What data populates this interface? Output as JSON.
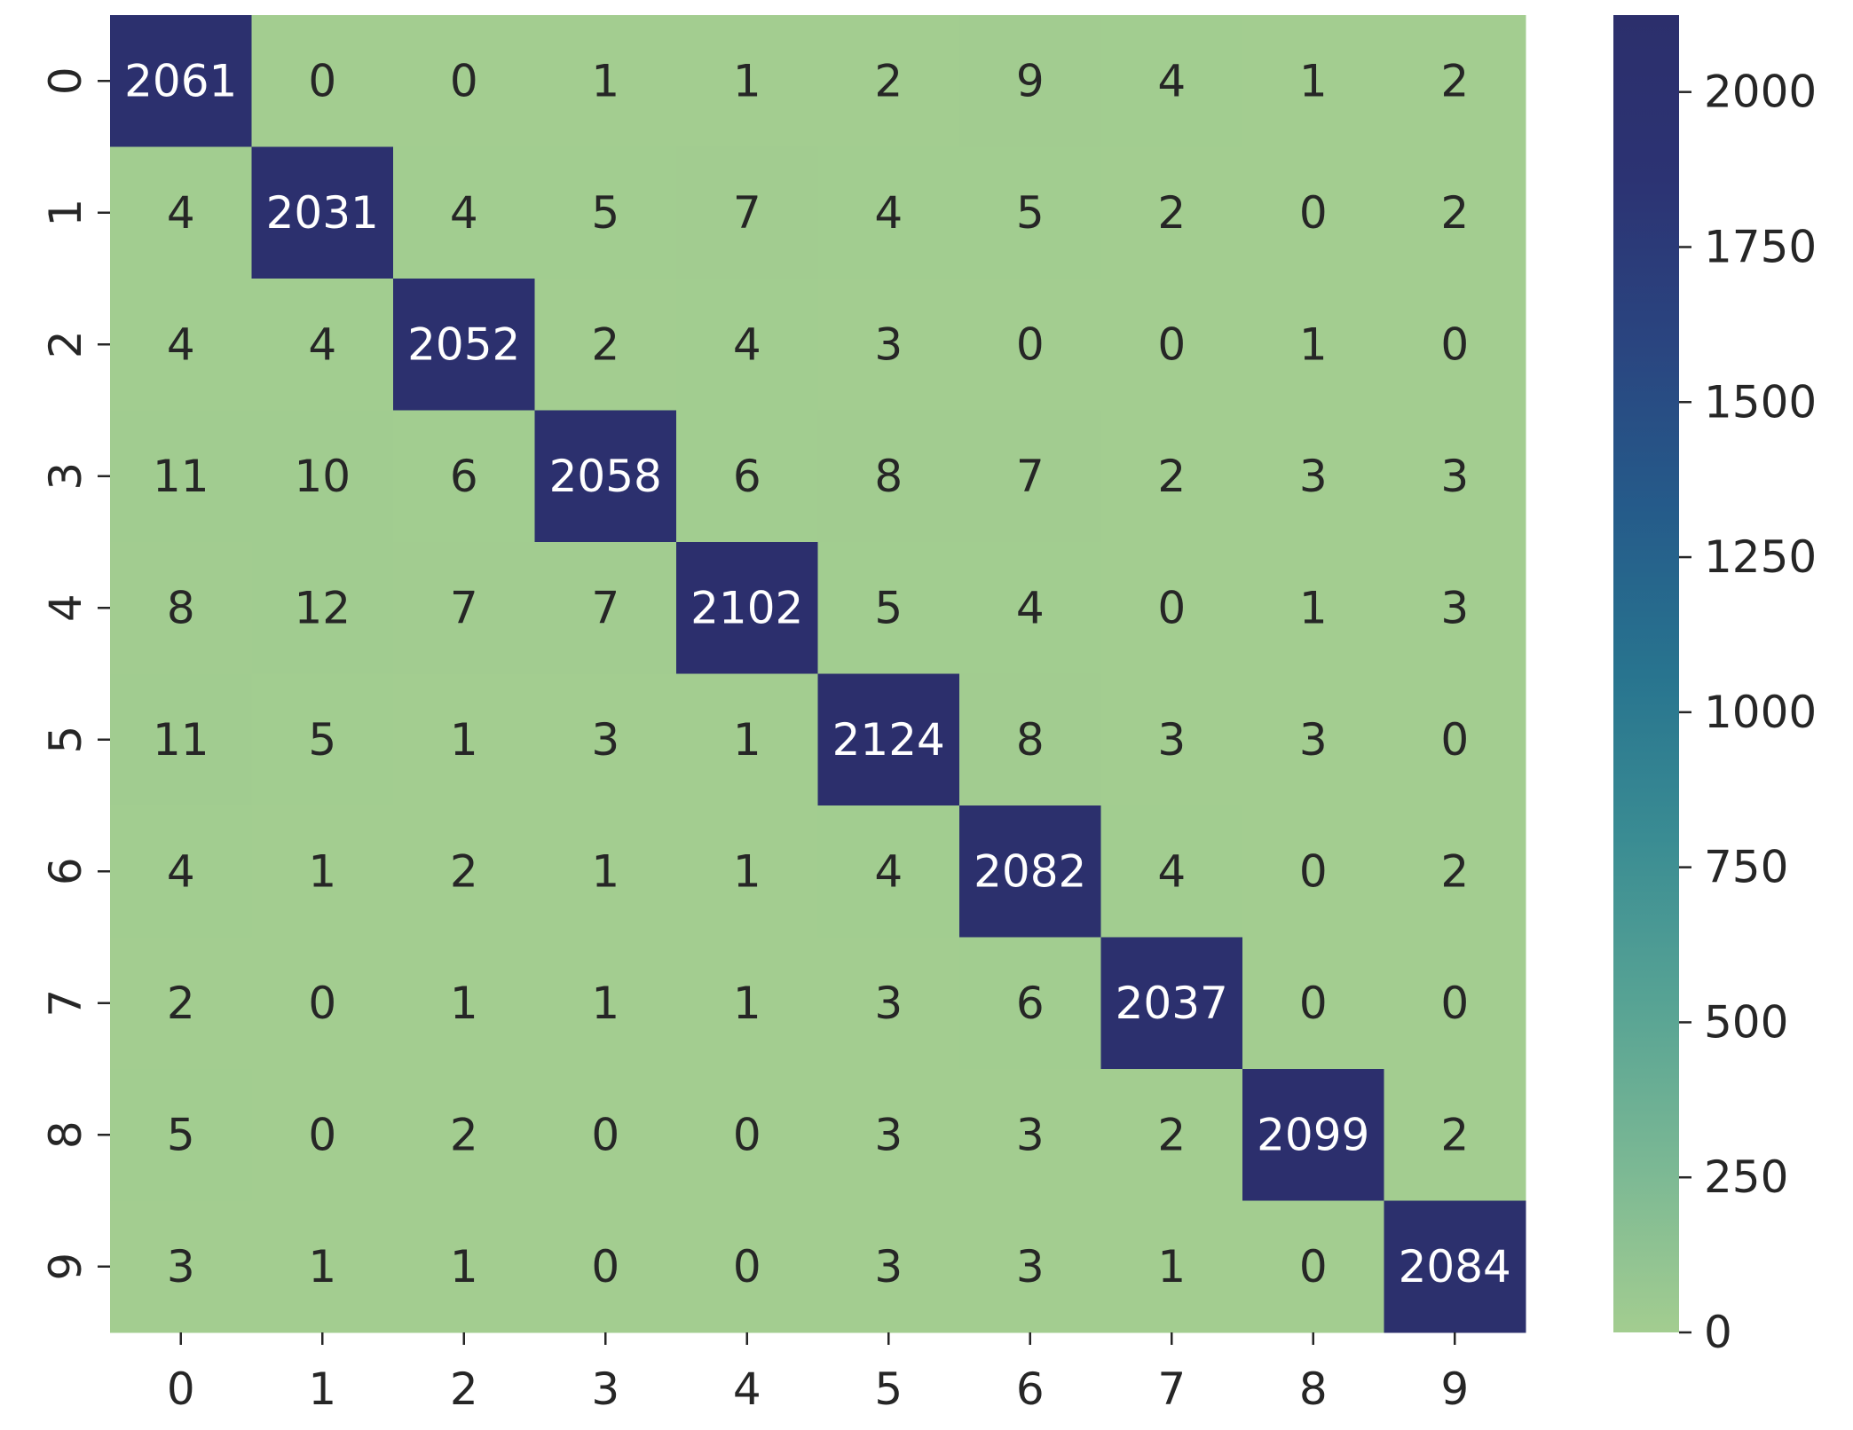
{
  "chart_data": {
    "type": "heatmap",
    "x_categories": [
      "0",
      "1",
      "2",
      "3",
      "4",
      "5",
      "6",
      "7",
      "8",
      "9"
    ],
    "y_categories": [
      "0",
      "1",
      "2",
      "3",
      "4",
      "5",
      "6",
      "7",
      "8",
      "9"
    ],
    "values": [
      [
        2061,
        0,
        0,
        1,
        1,
        2,
        9,
        4,
        1,
        2
      ],
      [
        4,
        2031,
        4,
        5,
        7,
        4,
        5,
        2,
        0,
        2
      ],
      [
        4,
        4,
        2052,
        2,
        4,
        3,
        0,
        0,
        1,
        0
      ],
      [
        11,
        10,
        6,
        2058,
        6,
        8,
        7,
        2,
        3,
        3
      ],
      [
        8,
        12,
        7,
        7,
        2102,
        5,
        4,
        0,
        1,
        3
      ],
      [
        11,
        5,
        1,
        3,
        1,
        2124,
        8,
        3,
        3,
        0
      ],
      [
        4,
        1,
        2,
        1,
        1,
        4,
        2082,
        4,
        0,
        2
      ],
      [
        2,
        0,
        1,
        1,
        1,
        3,
        6,
        2037,
        0,
        0
      ],
      [
        5,
        0,
        2,
        0,
        0,
        3,
        3,
        2,
        2099,
        2
      ],
      [
        3,
        1,
        1,
        0,
        0,
        3,
        3,
        1,
        0,
        2084
      ]
    ],
    "vlim": [
      0,
      2124
    ],
    "colorbar_ticks": [
      0,
      250,
      500,
      750,
      1000,
      1250,
      1500,
      1750,
      2000
    ],
    "colorscale": [
      "#a3cd90",
      "#7bb894",
      "#57a394",
      "#3a8c93",
      "#28748f",
      "#255b8a",
      "#2a4580",
      "#2c3373",
      "#2c2f6c"
    ]
  }
}
